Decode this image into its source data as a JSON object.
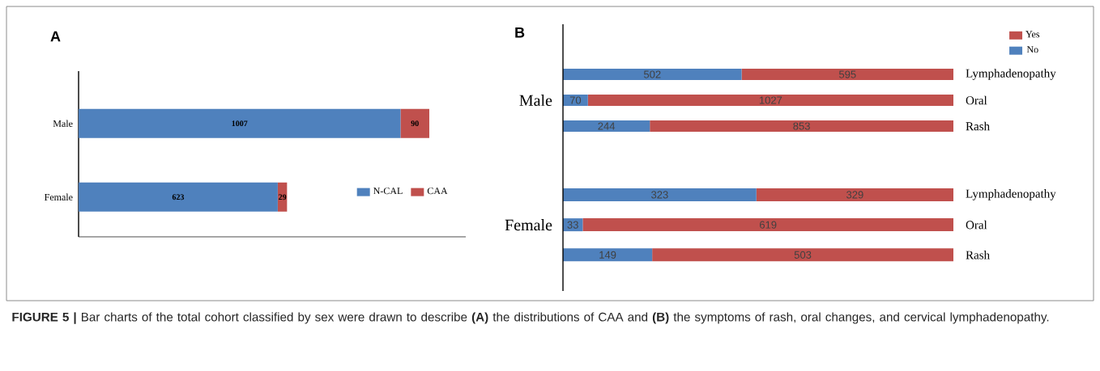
{
  "chart_data": [
    {
      "type": "bar",
      "title": "A",
      "orientation": "horizontal",
      "stacked": true,
      "categories": [
        "Male",
        "Female"
      ],
      "series": [
        {
          "name": "N-CAL",
          "color": "#4f81bd",
          "values": [
            1007,
            623
          ]
        },
        {
          "name": "CAA",
          "color": "#c0504d",
          "values": [
            90,
            29
          ]
        }
      ],
      "data_labels": true,
      "legend": "bottom right",
      "annotations": [
        "**FIGURE 5 |** Bar charts of the total cohort classified by sex were drawn to describe **(A)** the distributions of CAA and **(B)** the symptoms of rash, oral changes, and cervical lymphadenopathy."
      ]
    },
    {
      "type": "bar",
      "title": "B",
      "ylabel": "Male",
      "orientation": "horizontal",
      "stacked": true,
      "categories": [
        "Lymphadenopathy",
        "Oral",
        "Rash"
      ],
      "series": [
        {
          "name": "No",
          "color": "#4f81bd",
          "values": [
            502,
            70,
            244
          ]
        },
        {
          "name": "Yes",
          "color": "#c0504d",
          "values": [
            595,
            1027,
            853
          ]
        }
      ],
      "data_labels": true,
      "legend": "top right"
    },
    {
      "type": "bar",
      "ylabel": "Female",
      "orientation": "horizontal",
      "stacked": true,
      "categories": [
        "Lymphadenopathy",
        "Oral",
        "Rash"
      ],
      "series": [
        {
          "color": "#4f81bd",
          "values": [
            323,
            33,
            149
          ]
        },
        {
          "color": "#c0504d",
          "values": [
            329,
            619,
            503
          ]
        }
      ],
      "data_labels": true
    }
  ]
}
